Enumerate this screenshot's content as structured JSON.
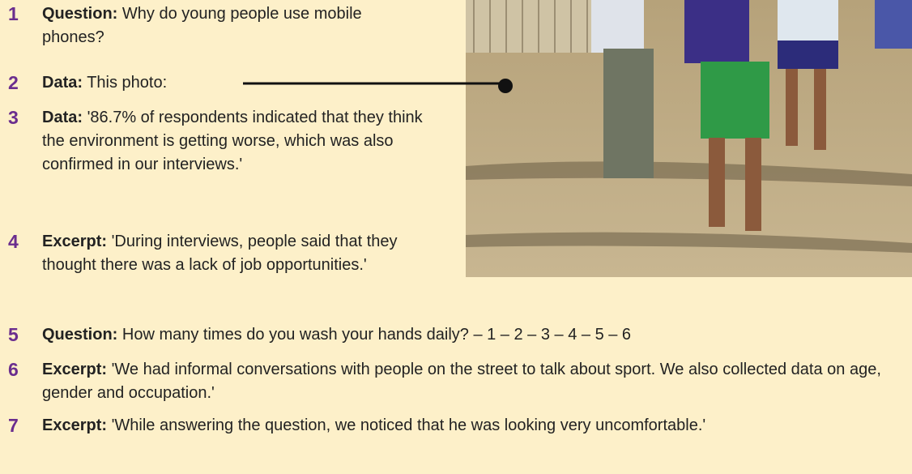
{
  "items": [
    {
      "number": "1",
      "label": "Question:",
      "text": "Why do young people use mobile phones?"
    },
    {
      "number": "2",
      "label": "Data:",
      "text": "This photo:"
    },
    {
      "number": "3",
      "label": "Data:",
      "text": "'86.7% of respondents indicated that they think the environment is getting worse, which was also confirmed in our interviews.'"
    },
    {
      "number": "4",
      "label": "Excerpt:",
      "text": "'During interviews, people said that they thought there was a lack of job opportunities.'"
    },
    {
      "number": "5",
      "label": "Question:",
      "text": "How many times do you wash your hands daily? – 1 – 2 – 3 – 4 – 5 – 6"
    },
    {
      "number": "6",
      "label": "Excerpt:",
      "text": "'We had informal conversations with people on the street to talk about sport. We also collected data on age, gender and occupation.'"
    },
    {
      "number": "7",
      "label": "Excerpt:",
      "text": "'While answering the question, we noticed that he was looking very uncomfortable.'"
    }
  ]
}
